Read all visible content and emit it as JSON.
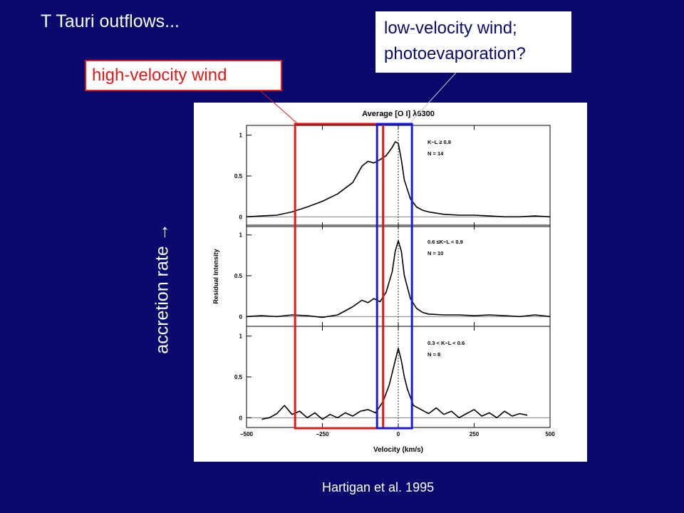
{
  "slide": {
    "title": "T Tauri outflows...",
    "annotation_low": [
      "low-velocity wind;",
      "photoevaporation?"
    ],
    "annotation_high": "high-velocity wind",
    "side_label": "accretion rate →",
    "citation": "Hartigan et al. 1995"
  },
  "colors": {
    "background": "#0a0a6e",
    "high_box": "#e01a1a",
    "low_box": "#1a1ae0"
  },
  "chart_data": {
    "type": "line",
    "title": "Average [O I] λ6300",
    "xlabel": "Velocity (km/s)",
    "ylabel": "Residual Intensity",
    "xlim": [
      -500,
      500
    ],
    "ylim": [
      -0.12,
      1.12
    ],
    "xticks": [
      -500,
      -250,
      0,
      250,
      500
    ],
    "yticks": [
      0,
      0.5,
      1
    ],
    "highlight_high_velocity": [
      -340,
      -50
    ],
    "highlight_low_velocity": [
      -70,
      45
    ],
    "panels": [
      {
        "label_lines": [
          "K−L ≥ 0.9",
          "N = 14"
        ],
        "x": [
          -500,
          -450,
          -400,
          -350,
          -300,
          -250,
          -200,
          -150,
          -120,
          -100,
          -80,
          -60,
          -40,
          -20,
          -10,
          0,
          10,
          20,
          40,
          60,
          80,
          100,
          150,
          200,
          250,
          300,
          350,
          400,
          450,
          500
        ],
        "y": [
          0.0,
          0.01,
          0.02,
          0.06,
          0.12,
          0.19,
          0.28,
          0.42,
          0.62,
          0.68,
          0.66,
          0.7,
          0.75,
          0.85,
          0.92,
          0.9,
          0.7,
          0.45,
          0.22,
          0.12,
          0.08,
          0.06,
          0.03,
          0.02,
          0.02,
          0.01,
          0.0,
          0.0,
          0.01,
          0.0
        ]
      },
      {
        "label_lines": [
          "0.6 ≤K−L < 0.9",
          "N = 10"
        ],
        "x": [
          -500,
          -450,
          -400,
          -350,
          -300,
          -250,
          -200,
          -150,
          -120,
          -100,
          -80,
          -60,
          -40,
          -20,
          -10,
          0,
          10,
          20,
          40,
          60,
          80,
          100,
          150,
          200,
          250,
          300,
          350,
          400,
          450,
          500
        ],
        "y": [
          0.0,
          0.01,
          0.0,
          0.02,
          0.01,
          -0.01,
          0.02,
          0.12,
          0.2,
          0.17,
          0.22,
          0.18,
          0.3,
          0.55,
          0.8,
          0.93,
          0.8,
          0.5,
          0.22,
          0.1,
          0.05,
          0.03,
          0.02,
          0.02,
          0.01,
          0.02,
          0.01,
          0.0,
          0.02,
          0.0
        ]
      },
      {
        "label_lines": [
          "0.3 < K−L < 0.6",
          "N = 8"
        ],
        "x": [
          -450,
          -425,
          -400,
          -375,
          -350,
          -325,
          -300,
          -275,
          -250,
          -225,
          -200,
          -175,
          -150,
          -125,
          -100,
          -75,
          -50,
          -30,
          -20,
          -10,
          0,
          10,
          20,
          30,
          50,
          75,
          100,
          125,
          150,
          175,
          200,
          225,
          250,
          275,
          300,
          325,
          350,
          375,
          400,
          425
        ],
        "y": [
          -0.02,
          0.0,
          0.05,
          0.15,
          0.04,
          0.08,
          0.0,
          0.06,
          -0.02,
          0.04,
          0.0,
          0.06,
          0.02,
          0.08,
          0.1,
          0.06,
          0.2,
          0.4,
          0.55,
          0.7,
          0.85,
          0.7,
          0.5,
          0.35,
          0.15,
          0.1,
          0.05,
          0.12,
          0.04,
          0.08,
          0.0,
          0.05,
          0.1,
          0.02,
          0.06,
          0.0,
          0.08,
          0.02,
          0.05,
          0.03
        ]
      }
    ]
  }
}
